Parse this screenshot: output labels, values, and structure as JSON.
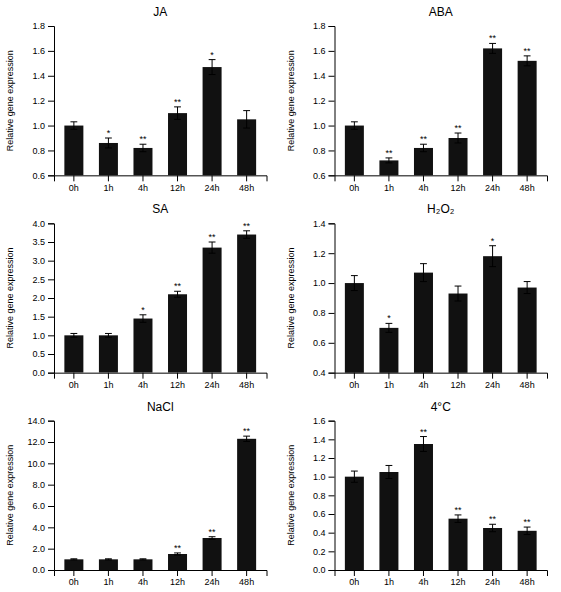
{
  "chart_data": [
    {
      "type": "bar",
      "title": "JA",
      "ylabel": "Relative gene expression",
      "color": "#111111",
      "categories": [
        "0h",
        "1h",
        "4h",
        "12h",
        "24h",
        "48h"
      ],
      "values": [
        1.0,
        0.86,
        0.82,
        1.1,
        1.47,
        1.05
      ],
      "errors": [
        0.03,
        0.04,
        0.03,
        0.05,
        0.06,
        0.07
      ],
      "annotations": [
        null,
        "*",
        "**",
        "**",
        "*",
        null
      ],
      "ylim": [
        0.6,
        1.8
      ],
      "yticks": [
        0.6,
        0.8,
        {
          "value": 1.0,
          "label": "1.0"
        },
        1.2,
        1.4,
        1.6,
        1.8
      ]
    },
    {
      "type": "bar",
      "title": "ABA",
      "ylabel": "Relative gene expression",
      "color": "#111111",
      "categories": [
        "0h",
        "1h",
        "4h",
        "12h",
        "24h",
        "48h"
      ],
      "values": [
        1.0,
        0.72,
        0.82,
        0.9,
        1.62,
        1.52
      ],
      "errors": [
        0.03,
        0.02,
        0.03,
        0.04,
        0.04,
        0.04
      ],
      "annotations": [
        null,
        "**",
        "**",
        "**",
        "**",
        "**"
      ],
      "ylim": [
        0.6,
        1.8
      ],
      "yticks": [
        0.6,
        0.8,
        {
          "value": 1.0,
          "label": "1.0"
        },
        1.2,
        1.4,
        1.6,
        1.8
      ]
    },
    {
      "type": "bar",
      "title": "SA",
      "ylabel": "Relative gene expression",
      "color": "#111111",
      "categories": [
        "0h",
        "1h",
        "4h",
        "12h",
        "24h",
        "48h"
      ],
      "values": [
        1.0,
        1.0,
        1.45,
        2.1,
        3.35,
        3.7
      ],
      "errors": [
        0.05,
        0.05,
        0.1,
        0.08,
        0.15,
        0.1
      ],
      "annotations": [
        null,
        null,
        "*",
        "**",
        "**",
        "**"
      ],
      "ylim": [
        0.0,
        4.0
      ],
      "yticks": [
        {
          "value": 0.0,
          "label": "0.0"
        },
        0.5,
        {
          "value": 1.0,
          "label": "1.0"
        },
        1.5,
        {
          "value": 2.0,
          "label": "2.0"
        },
        2.5,
        {
          "value": 3.0,
          "label": "3.0"
        },
        3.5,
        {
          "value": 4.0,
          "label": "4.0"
        }
      ]
    },
    {
      "type": "bar",
      "title": "H₂O₂",
      "ylabel": "Relative gene expression",
      "color": "#111111",
      "categories": [
        "0h",
        "1h",
        "4h",
        "12h",
        "24h",
        "48h"
      ],
      "values": [
        1.0,
        0.7,
        1.07,
        0.93,
        1.18,
        0.97
      ],
      "errors": [
        0.05,
        0.03,
        0.06,
        0.05,
        0.07,
        0.04
      ],
      "annotations": [
        null,
        "*",
        null,
        null,
        "*",
        null
      ],
      "ylim": [
        0.4,
        1.4
      ],
      "yticks": [
        0.4,
        0.6,
        0.8,
        {
          "value": 1.0,
          "label": "1.0"
        },
        1.2,
        1.4
      ]
    },
    {
      "type": "bar",
      "title": "NaCl",
      "ylabel": "Relative gene expression",
      "color": "#111111",
      "categories": [
        "0h",
        "1h",
        "4h",
        "12h",
        "24h",
        "48h"
      ],
      "values": [
        1.0,
        1.0,
        1.0,
        1.5,
        3.0,
        12.3
      ],
      "errors": [
        0.05,
        0.05,
        0.05,
        0.1,
        0.12,
        0.25
      ],
      "annotations": [
        null,
        null,
        null,
        "**",
        "**",
        "**"
      ],
      "ylim": [
        0.0,
        14.0
      ],
      "yticks": [
        {
          "value": 0.0,
          "label": "0.0"
        },
        {
          "value": 2.0,
          "label": "2.0"
        },
        {
          "value": 4.0,
          "label": "4.0"
        },
        {
          "value": 6.0,
          "label": "6.0"
        },
        {
          "value": 8.0,
          "label": "8.0"
        },
        {
          "value": 10.0,
          "label": "10.0"
        },
        {
          "value": 12.0,
          "label": "12.0"
        },
        {
          "value": 14.0,
          "label": "14.0"
        }
      ]
    },
    {
      "type": "bar",
      "title": "4°C",
      "ylabel": "Relative gene expression",
      "color": "#111111",
      "categories": [
        "0h",
        "1h",
        "4h",
        "12h",
        "24h",
        "48h"
      ],
      "values": [
        1.0,
        1.05,
        1.35,
        0.55,
        0.45,
        0.42
      ],
      "errors": [
        0.06,
        0.07,
        0.08,
        0.04,
        0.04,
        0.04
      ],
      "annotations": [
        null,
        null,
        "**",
        "**",
        "**",
        "**"
      ],
      "ylim": [
        0.0,
        1.6
      ],
      "yticks": [
        {
          "value": 0.0,
          "label": "0.0"
        },
        0.2,
        0.4,
        0.6,
        0.8,
        {
          "value": 1.0,
          "label": "1.0"
        },
        1.2,
        1.4,
        1.6
      ]
    }
  ]
}
